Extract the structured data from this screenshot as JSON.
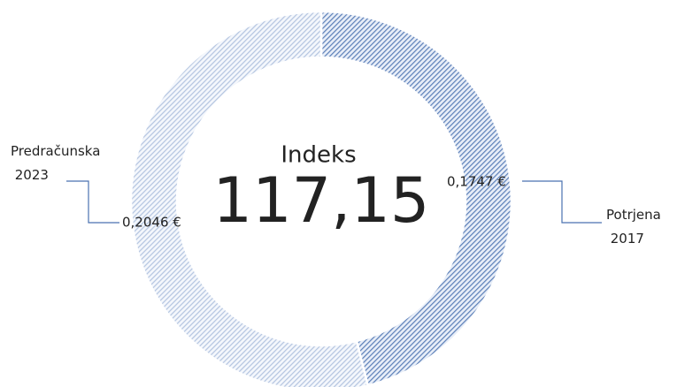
{
  "chart_data": {
    "type": "pie",
    "donut": true,
    "categories": [
      "Potrjena 2017",
      "Predračunska 2023"
    ],
    "values": [
      0.1747,
      0.2046
    ],
    "value_labels": [
      "0,1747 €",
      "0,2046 €"
    ],
    "colors": [
      "#5b7fb8",
      "#b3c4e0"
    ],
    "center_label": "Indeks",
    "center_value": "117,15"
  }
}
